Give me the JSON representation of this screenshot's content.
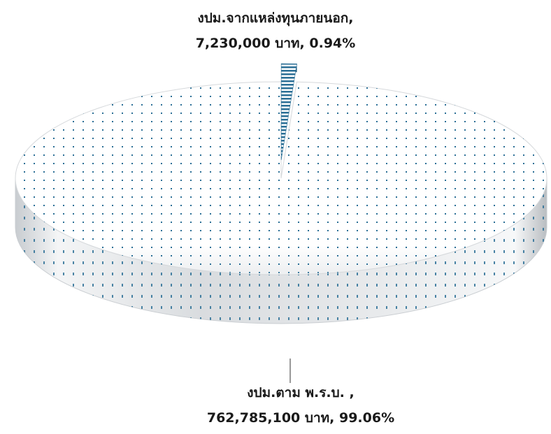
{
  "chart_data": {
    "type": "pie",
    "title": "",
    "slices": [
      {
        "label": "งปม.ตาม พ.ร.บ. ,",
        "value_text": "762,785,100 บาท, 99.06%",
        "value": 762785100,
        "percent": 99.06,
        "color": "#2b6f96",
        "pattern": "dots"
      },
      {
        "label": "งปม.จากแหล่งทุนภายนอก,",
        "value_text": "7,230,000 บาท, 0.94%",
        "value": 7230000,
        "percent": 0.94,
        "color": "#2b6f96",
        "pattern": "horizontal-stripes",
        "exploded": true
      }
    ]
  }
}
